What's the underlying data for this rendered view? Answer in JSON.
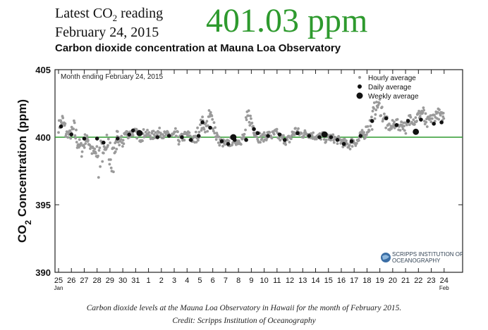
{
  "header": {
    "latest_prefix": "Latest CO",
    "latest_sub": "2",
    "latest_suffix": " reading",
    "date": "February 24, 2015",
    "value": "401.03 ppm"
  },
  "caption": {
    "line1": "Carbon dioxide levels at the Mauna Loa Observatory in Hawaii for the month of February 2015.",
    "line2": "Credit: Scripps Institution of Oceanography"
  },
  "logo": {
    "line1": "SCRIPPS INSTITUTION OF",
    "line2": "OCEANOGRAPHY"
  },
  "colors": {
    "reading": "#2e9a2e",
    "reference_line": "#2e9a2e",
    "hourly": "#9a9a9a",
    "daily": "#111111",
    "weekly": "#111111"
  },
  "chart_data": {
    "type": "scatter",
    "title": "Carbon dioxide concentration at Mauna Loa Observatory",
    "inset_label": "Month ending February 24, 2015",
    "ylabel_prefix": "CO",
    "ylabel_sub": "2",
    "ylabel_suffix": " Concentration (ppm)",
    "ylim": [
      390,
      405
    ],
    "yticks": [
      390,
      395,
      400,
      405
    ],
    "reference_line": 400,
    "xlim": [
      0,
      31
    ],
    "x_tick_labels": [
      "25",
      "26",
      "27",
      "28",
      "29",
      "30",
      "31",
      "1",
      "2",
      "3",
      "4",
      "5",
      "6",
      "7",
      "8",
      "9",
      "10",
      "11",
      "12",
      "13",
      "14",
      "15",
      "16",
      "17",
      "18",
      "19",
      "20",
      "21",
      "22",
      "23",
      "24"
    ],
    "x_month_labels": [
      {
        "at": 0,
        "label": "Jan"
      },
      {
        "at": 30,
        "label": "Feb"
      }
    ],
    "legend": [
      "Hourly average",
      "Daily average",
      "Weekly average"
    ],
    "legend_position": "top-right",
    "hourly_profile": [
      [
        0.0,
        400.8
      ],
      [
        0.3,
        401.2
      ],
      [
        0.6,
        400.3
      ],
      [
        0.9,
        400.2
      ],
      [
        1.2,
        400.6
      ],
      [
        1.5,
        399.6
      ],
      [
        1.8,
        399.1
      ],
      [
        2.1,
        399.8
      ],
      [
        2.3,
        399.9
      ],
      [
        2.6,
        399.0
      ],
      [
        2.9,
        398.7
      ],
      [
        3.2,
        399.5
      ],
      [
        3.5,
        399.2
      ],
      [
        3.8,
        400.1
      ],
      [
        4.1,
        398.9
      ],
      [
        4.4,
        399.0
      ],
      [
        4.6,
        400.0
      ],
      [
        4.9,
        399.5
      ],
      [
        5.2,
        400.3
      ],
      [
        5.5,
        400.2
      ],
      [
        5.8,
        400.4
      ],
      [
        6.1,
        400.3
      ],
      [
        6.4,
        400.0
      ],
      [
        6.7,
        400.3
      ],
      [
        7.0,
        400.2
      ],
      [
        7.3,
        400.1
      ],
      [
        7.6,
        400.3
      ],
      [
        7.9,
        400.4
      ],
      [
        8.2,
        400.2
      ],
      [
        8.5,
        400.2
      ],
      [
        8.8,
        400.1
      ],
      [
        9.1,
        400.2
      ],
      [
        9.4,
        399.8
      ],
      [
        9.7,
        400.0
      ],
      [
        10.0,
        400.2
      ],
      [
        10.3,
        399.9
      ],
      [
        10.6,
        399.8
      ],
      [
        10.9,
        400.4
      ],
      [
        11.2,
        401.1
      ],
      [
        11.5,
        400.7
      ],
      [
        11.8,
        401.6
      ],
      [
        12.1,
        400.9
      ],
      [
        12.4,
        399.8
      ],
      [
        12.7,
        399.6
      ],
      [
        13.0,
        399.5
      ],
      [
        13.3,
        399.6
      ],
      [
        13.6,
        399.8
      ],
      [
        13.9,
        399.7
      ],
      [
        14.2,
        399.8
      ],
      [
        14.5,
        400.1
      ],
      [
        14.8,
        401.6
      ],
      [
        15.1,
        400.9
      ],
      [
        15.4,
        400.3
      ],
      [
        15.7,
        399.9
      ],
      [
        16.0,
        400.0
      ],
      [
        16.3,
        400.2
      ],
      [
        16.6,
        400.1
      ],
      [
        16.9,
        400.3
      ],
      [
        17.2,
        400.0
      ],
      [
        17.5,
        399.9
      ],
      [
        17.8,
        399.7
      ],
      [
        18.1,
        400.0
      ],
      [
        18.4,
        400.5
      ],
      [
        18.7,
        400.3
      ],
      [
        19.0,
        400.2
      ],
      [
        19.3,
        400.3
      ],
      [
        19.6,
        400.2
      ],
      [
        19.9,
        400.1
      ],
      [
        20.2,
        400.0
      ],
      [
        20.5,
        400.1
      ],
      [
        20.8,
        399.9
      ],
      [
        21.1,
        400.0
      ],
      [
        21.4,
        399.9
      ],
      [
        21.7,
        399.8
      ],
      [
        22.0,
        399.7
      ],
      [
        22.3,
        399.5
      ],
      [
        22.6,
        399.4
      ],
      [
        22.9,
        399.7
      ],
      [
        23.2,
        399.6
      ],
      [
        23.5,
        400.0
      ],
      [
        23.8,
        400.3
      ],
      [
        24.1,
        400.7
      ],
      [
        24.4,
        401.3
      ],
      [
        24.7,
        402.3
      ],
      [
        25.0,
        402.4
      ],
      [
        25.3,
        401.5
      ],
      [
        25.6,
        400.8
      ],
      [
        25.9,
        400.7
      ],
      [
        26.2,
        401.1
      ],
      [
        26.5,
        400.8
      ],
      [
        26.8,
        401.0
      ],
      [
        27.1,
        400.6
      ],
      [
        27.4,
        401.5
      ],
      [
        27.7,
        401.2
      ],
      [
        28.0,
        401.6
      ],
      [
        28.3,
        401.9
      ],
      [
        28.6,
        400.9
      ],
      [
        28.9,
        401.3
      ],
      [
        29.2,
        401.5
      ],
      [
        29.5,
        401.8
      ],
      [
        29.8,
        401.5
      ],
      [
        30.0,
        401.7
      ]
    ],
    "daily": [
      [
        0.2,
        400.8
      ],
      [
        1.0,
        400.2
      ],
      [
        2.0,
        399.9
      ],
      [
        3.0,
        399.9
      ],
      [
        3.5,
        399.6
      ],
      [
        4.6,
        399.9
      ],
      [
        5.5,
        400.2
      ],
      [
        5.8,
        400.5
      ],
      [
        6.4,
        400.3
      ],
      [
        7.7,
        400.0
      ],
      [
        8.6,
        400.1
      ],
      [
        9.6,
        400.0
      ],
      [
        10.3,
        399.8
      ],
      [
        10.9,
        400.1
      ],
      [
        11.2,
        401.1
      ],
      [
        11.8,
        400.7
      ],
      [
        12.7,
        399.7
      ],
      [
        13.2,
        399.5
      ],
      [
        13.7,
        399.8
      ],
      [
        14.6,
        399.8
      ],
      [
        15.2,
        400.6
      ],
      [
        15.5,
        400.3
      ],
      [
        16.3,
        400.1
      ],
      [
        17.2,
        400.2
      ],
      [
        17.6,
        399.8
      ],
      [
        18.6,
        400.3
      ],
      [
        19.5,
        400.1
      ],
      [
        20.3,
        400.0
      ],
      [
        21.2,
        400.0
      ],
      [
        21.7,
        399.8
      ],
      [
        22.2,
        399.5
      ],
      [
        22.8,
        399.7
      ],
      [
        23.5,
        400.1
      ],
      [
        24.4,
        401.2
      ],
      [
        25.5,
        401.4
      ],
      [
        26.3,
        400.9
      ],
      [
        27.2,
        401.2
      ],
      [
        28.2,
        401.3
      ],
      [
        29.2,
        401.0
      ],
      [
        29.8,
        401.1
      ]
    ],
    "weekly": [
      [
        6.3,
        400.3
      ],
      [
        13.6,
        400.0
      ],
      [
        20.7,
        400.2
      ],
      [
        27.8,
        400.4
      ]
    ]
  }
}
